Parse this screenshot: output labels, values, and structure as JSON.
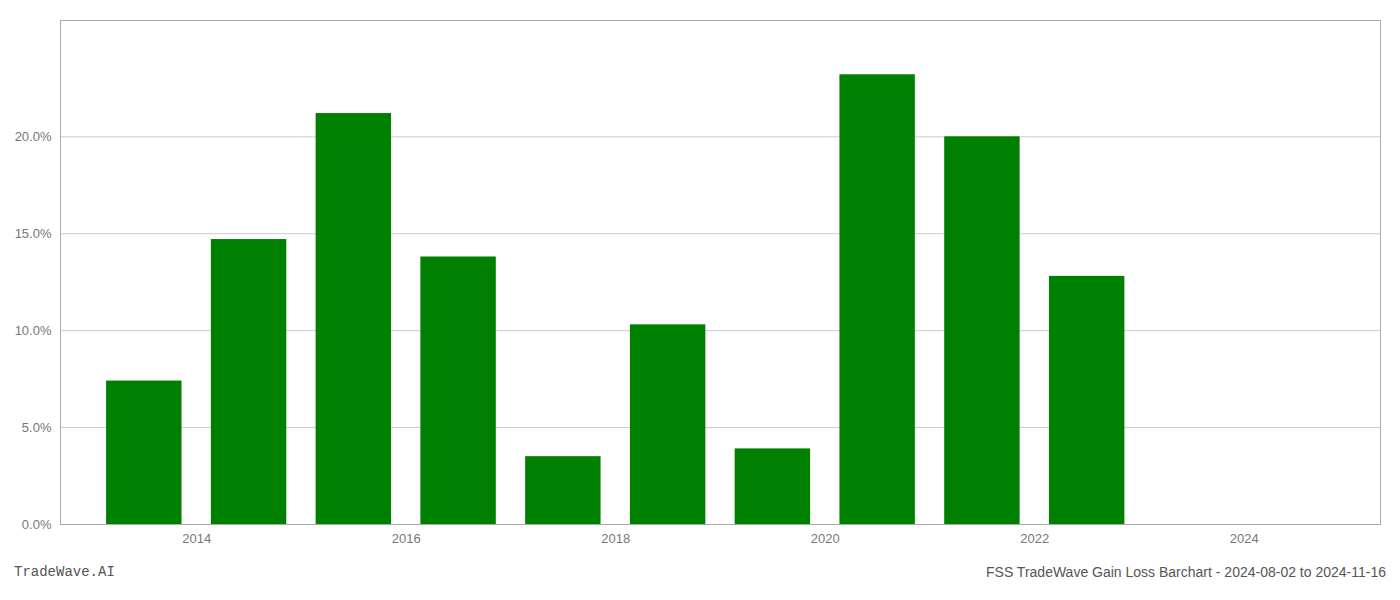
{
  "chart_data": {
    "type": "bar",
    "title": "FSS TradeWave Gain Loss Barchart - 2024-08-02 to 2024-11-16",
    "annotations": [
      "TradeWave.AI"
    ],
    "x": [
      2013,
      2014,
      2015,
      2016,
      2017,
      2018,
      2019,
      2020,
      2021,
      2022,
      2023
    ],
    "values": [
      7.4,
      14.7,
      21.2,
      13.8,
      3.5,
      10.3,
      3.9,
      23.2,
      20.0,
      12.8,
      0.0
    ],
    "color": "#008000",
    "xlim": [
      2012.2,
      2024.8
    ],
    "xticks": [
      {
        "value": 2013.5,
        "label": "2014"
      },
      {
        "value": 2015.5,
        "label": "2016"
      },
      {
        "value": 2017.5,
        "label": "2018"
      },
      {
        "value": 2019.5,
        "label": "2020"
      },
      {
        "value": 2021.5,
        "label": "2022"
      },
      {
        "value": 2023.5,
        "label": "2024"
      }
    ],
    "ylim": [
      0,
      26
    ],
    "yticks": [
      {
        "value": 0.0,
        "label": "0.0%"
      },
      {
        "value": 5.0,
        "label": "5.0%"
      },
      {
        "value": 10.0,
        "label": "10.0%"
      },
      {
        "value": 15.0,
        "label": "15.0%"
      },
      {
        "value": 20.0,
        "label": "20.0%"
      }
    ],
    "grid": true
  }
}
